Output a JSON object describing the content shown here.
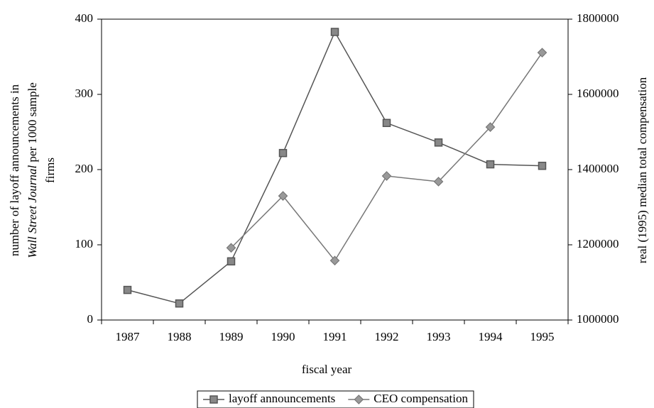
{
  "chart_data": {
    "type": "line",
    "ylabel": {
      "line1": "number of layoff announcements in",
      "italic": "Wall Street Journal",
      "rest": "per 1000 sample",
      "line3": "firms"
    },
    "y2label": "real (1995) median total compensation",
    "xlabel": "fiscal year",
    "categories": [
      "1987",
      "1988",
      "1989",
      "1990",
      "1991",
      "1992",
      "1993",
      "1994",
      "1995"
    ],
    "series": [
      {
        "name": "layoff announcements",
        "color": "#555555",
        "marker": "square",
        "values": [
          40,
          22,
          78,
          222,
          383,
          262,
          236,
          207,
          205
        ]
      },
      {
        "name": "CEO compensation",
        "color": "#777777",
        "marker": "diamond",
        "axis": "y2",
        "values": [
          null,
          null,
          1192000,
          1330000,
          1158000,
          1383000,
          1368000,
          1513000,
          1711000
        ]
      }
    ],
    "ylim": [
      0,
      400
    ],
    "yticks": [
      0,
      100,
      200,
      300,
      400
    ],
    "y2lim": [
      1000000,
      1800000
    ],
    "y2ticks": [
      1000000,
      1200000,
      1400000,
      1600000,
      1800000
    ],
    "legend": "bottom"
  }
}
